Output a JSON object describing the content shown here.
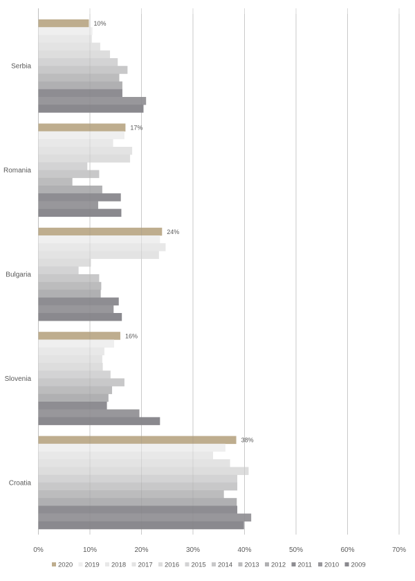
{
  "chart_data": {
    "type": "bar",
    "orientation": "horizontal",
    "title": "",
    "xlabel": "",
    "ylabel": "",
    "categories": [
      "Serbia",
      "Romania",
      "Bulgaria",
      "Slovenia",
      "Croatia"
    ],
    "xlim": [
      0,
      70
    ],
    "x_ticks": [
      "0%",
      "10%",
      "20%",
      "30%",
      "40%",
      "50%",
      "60%",
      "70%"
    ],
    "grid": true,
    "legend_position": "bottom",
    "series": [
      {
        "name": "2020",
        "color": "#bead8e",
        "values": [
          9.8,
          16.9,
          24.0,
          15.9,
          38.4
        ],
        "data_labels": [
          "10%",
          "17%",
          "24%",
          "16%",
          "38%"
        ]
      },
      {
        "name": "2019",
        "color": "#efefef",
        "values": [
          10.5,
          16.7,
          23.6,
          14.7,
          36.3
        ]
      },
      {
        "name": "2018",
        "color": "#e8e8e8",
        "values": [
          10.4,
          14.5,
          24.7,
          12.8,
          33.9
        ]
      },
      {
        "name": "2017",
        "color": "#e3e3e3",
        "values": [
          12.0,
          18.2,
          23.4,
          12.4,
          37.2
        ]
      },
      {
        "name": "2016",
        "color": "#dddddd",
        "values": [
          13.9,
          17.8,
          10.2,
          12.5,
          40.8
        ]
      },
      {
        "name": "2015",
        "color": "#d3d3d4",
        "values": [
          15.4,
          9.5,
          7.8,
          14.0,
          38.6
        ]
      },
      {
        "name": "2014",
        "color": "#c8c8c9",
        "values": [
          17.3,
          11.8,
          11.8,
          16.7,
          38.6
        ]
      },
      {
        "name": "2013",
        "color": "#bcbcbd",
        "values": [
          15.7,
          6.6,
          12.2,
          14.3,
          36.0
        ]
      },
      {
        "name": "2012",
        "color": "#b0b0b2",
        "values": [
          16.3,
          12.4,
          12.1,
          13.6,
          38.5
        ]
      },
      {
        "name": "2011",
        "color": "#8e8d92",
        "values": [
          16.3,
          16.0,
          15.6,
          13.3,
          38.6
        ]
      },
      {
        "name": "2010",
        "color": "#98979b",
        "values": [
          20.9,
          11.6,
          14.6,
          19.6,
          41.3
        ]
      },
      {
        "name": "2009",
        "color": "#8a898e",
        "values": [
          20.4,
          16.1,
          16.2,
          23.6,
          39.9
        ]
      }
    ]
  }
}
